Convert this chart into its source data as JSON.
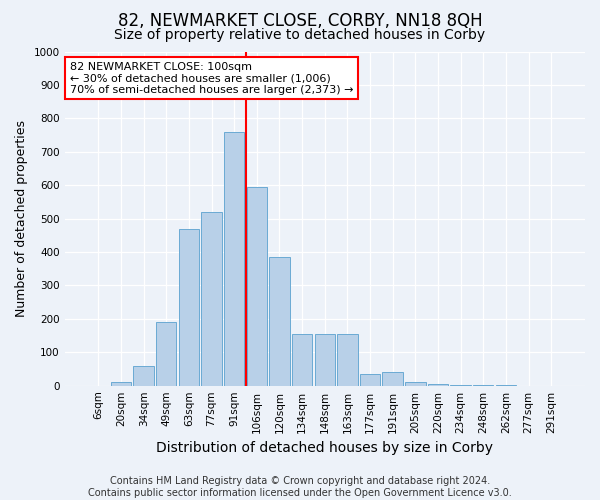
{
  "title": "82, NEWMARKET CLOSE, CORBY, NN18 8QH",
  "subtitle": "Size of property relative to detached houses in Corby",
  "xlabel": "Distribution of detached houses by size in Corby",
  "ylabel": "Number of detached properties",
  "categories": [
    "6sqm",
    "20sqm",
    "34sqm",
    "49sqm",
    "63sqm",
    "77sqm",
    "91sqm",
    "106sqm",
    "120sqm",
    "134sqm",
    "148sqm",
    "163sqm",
    "177sqm",
    "191sqm",
    "205sqm",
    "220sqm",
    "234sqm",
    "248sqm",
    "262sqm",
    "277sqm",
    "291sqm"
  ],
  "values": [
    0,
    12,
    60,
    190,
    470,
    520,
    760,
    595,
    385,
    155,
    155,
    155,
    35,
    40,
    10,
    5,
    3,
    2,
    1,
    0,
    0
  ],
  "bar_color": "#b8d0e8",
  "bar_edge_color": "#6aaad4",
  "vline_x_index": 7,
  "vline_color": "red",
  "annotation_text": "82 NEWMARKET CLOSE: 100sqm\n← 30% of detached houses are smaller (1,006)\n70% of semi-detached houses are larger (2,373) →",
  "annotation_box_color": "white",
  "annotation_box_edge_color": "red",
  "ylim": [
    0,
    1000
  ],
  "yticks": [
    0,
    100,
    200,
    300,
    400,
    500,
    600,
    700,
    800,
    900,
    1000
  ],
  "footer1": "Contains HM Land Registry data © Crown copyright and database right 2024.",
  "footer2": "Contains public sector information licensed under the Open Government Licence v3.0.",
  "bg_color": "#edf2f9",
  "grid_color": "white",
  "title_fontsize": 12,
  "subtitle_fontsize": 10,
  "tick_fontsize": 7.5,
  "ylabel_fontsize": 9,
  "xlabel_fontsize": 10,
  "footer_fontsize": 7,
  "annotation_fontsize": 8
}
